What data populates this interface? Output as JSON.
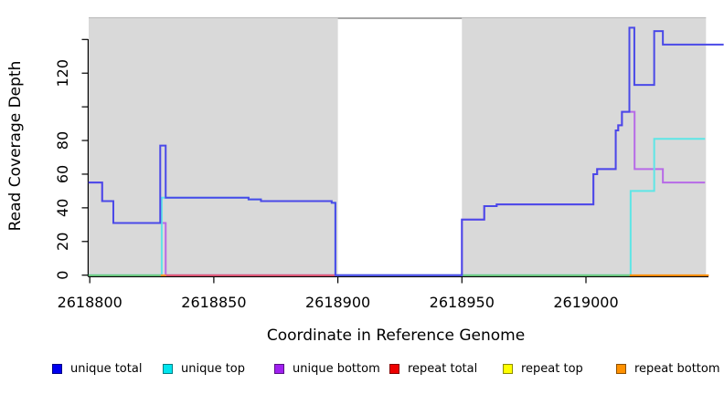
{
  "chart_data": {
    "type": "line",
    "title": "",
    "xlabel": "Coordinate in Reference Genome",
    "ylabel": "Read Coverage Depth",
    "xlim": [
      2618799.5,
      2619055.5
    ],
    "ylim": [
      0,
      153
    ],
    "grid": false,
    "plot_background": "#d9d9d9",
    "gap_region": {
      "from": 2618900,
      "to": 2618949,
      "fill": "#ffffff",
      "top_border": "#8a8a8a"
    },
    "x_ticks": [
      {
        "c": 2618800,
        "label": "2618800"
      },
      {
        "c": 2618850,
        "label": "2618850"
      },
      {
        "c": 2618900,
        "label": "2618900"
      },
      {
        "c": 2618950,
        "label": "2618950"
      },
      {
        "c": 2619000,
        "label": "2619000"
      }
    ],
    "y_ticks": [
      {
        "v": 0,
        "label": "0"
      },
      {
        "v": 20,
        "label": "20"
      },
      {
        "v": 40,
        "label": "40"
      },
      {
        "v": 60,
        "label": "60"
      },
      {
        "v": 80,
        "label": "80"
      },
      {
        "v": 100,
        "label": ""
      },
      {
        "v": 120,
        "label": "120"
      },
      {
        "v": 140,
        "label": ""
      }
    ],
    "series": [
      {
        "name": "unique total",
        "line_color": "#4a49e8",
        "end": 2619055.5,
        "points": [
          [
            2618799.5,
            55
          ],
          [
            2618805,
            44
          ],
          [
            2618809.5,
            31
          ],
          [
            2618828.4,
            77
          ],
          [
            2618830.6,
            46
          ],
          [
            2618864,
            45
          ],
          [
            2618869,
            44
          ],
          [
            2618897.5,
            43
          ],
          [
            2618899,
            0
          ],
          [
            2618950,
            33
          ],
          [
            2618959,
            41
          ],
          [
            2618964,
            42
          ],
          [
            2619003,
            60
          ],
          [
            2619004.5,
            63
          ],
          [
            2619012,
            86
          ],
          [
            2619013,
            89
          ],
          [
            2619014.5,
            97
          ],
          [
            2619017.5,
            147
          ],
          [
            2619019.5,
            113
          ],
          [
            2619027.5,
            145
          ],
          [
            2619031,
            137
          ]
        ]
      },
      {
        "name": "unique top",
        "line_color": "#5ee6e6",
        "end": 2619048,
        "points": [
          [
            2618799.5,
            0
          ],
          [
            2618829,
            46
          ],
          [
            2618864,
            45
          ],
          [
            2618869,
            44
          ],
          [
            2618897.5,
            43
          ],
          [
            2618899,
            0
          ],
          [
            2619018,
            50
          ],
          [
            2619027.5,
            81
          ]
        ]
      },
      {
        "name": "unique bottom",
        "line_color": "#b76ae7",
        "end": 2619048,
        "points": [
          [
            2618799.5,
            55
          ],
          [
            2618805,
            44
          ],
          [
            2618809.5,
            31
          ],
          [
            2618830.6,
            0
          ],
          [
            2618950,
            33
          ],
          [
            2618959,
            41
          ],
          [
            2618964,
            42
          ],
          [
            2619003,
            60
          ],
          [
            2619004.5,
            63
          ],
          [
            2619012,
            86
          ],
          [
            2619013,
            89
          ],
          [
            2619014.5,
            97
          ],
          [
            2619019.6,
            63
          ],
          [
            2619031,
            55
          ]
        ]
      },
      {
        "name": "repeat total",
        "end": 2619049,
        "points": [
          [
            2618799.5,
            0
          ]
        ]
      },
      {
        "name": "repeat top",
        "end": 2619049,
        "points": [
          [
            2618799.5,
            0
          ]
        ]
      },
      {
        "name": "repeat bottom",
        "end": 2619049,
        "points": [
          [
            2618799.5,
            0
          ]
        ]
      }
    ],
    "baseline_segments": [
      {
        "from": 2618799.5,
        "to": 2618828.6,
        "color": "#6cc87c"
      },
      {
        "from": 2618828.6,
        "to": 2618830.8,
        "color": "#ff9021"
      },
      {
        "from": 2618830.8,
        "to": 2618899.3,
        "color": "#e05570"
      },
      {
        "from": 2618950,
        "to": 2619017.6,
        "color": "#6cc87c"
      },
      {
        "from": 2619017.6,
        "to": 2619049.5,
        "color": "#ff8c00"
      }
    ]
  },
  "legend": {
    "items": [
      {
        "label": "unique total",
        "color": "#0000f0"
      },
      {
        "label": "unique top",
        "color": "#00e5ee"
      },
      {
        "label": "unique bottom",
        "color": "#a020f0"
      },
      {
        "label": "repeat total",
        "color": "#ee0000"
      },
      {
        "label": "repeat top",
        "color": "#ffff00"
      },
      {
        "label": "repeat bottom",
        "color": "#ff9100"
      }
    ]
  }
}
